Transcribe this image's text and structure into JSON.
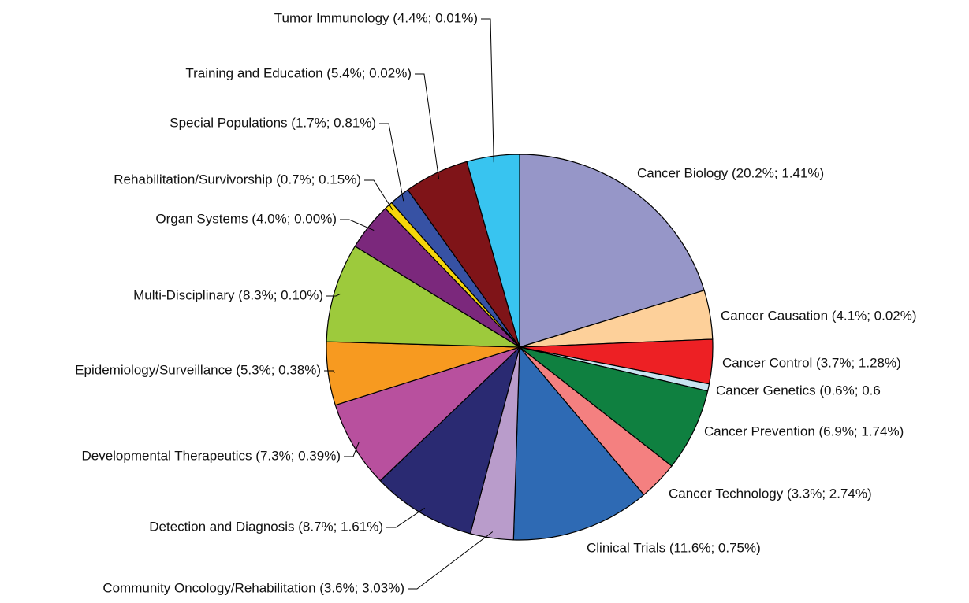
{
  "chart_data": {
    "type": "pie",
    "categories": [
      "Cancer Biology (20.2%; 1.41%)",
      "Cancer Causation (4.1%; 0.02%)",
      "Cancer Control (3.7%; 1.28%)",
      "Cancer Genetics (0.6%; 0.6",
      "Cancer Prevention (6.9%; 1.74%)",
      "Cancer Technology (3.3%; 2.74%)",
      "Clinical Trials (11.6%; 0.75%)",
      "Community Oncology/Rehabilitation (3.6%; 3.03%)",
      "Detection and Diagnosis (8.7%; 1.61%)",
      "Developmental Therapeutics (7.3%; 0.39%)",
      "Epidemiology/Surveillance (5.3%; 0.38%)",
      "Multi-Disciplinary (8.3%; 0.10%)",
      "Organ Systems (4.0%; 0.00%)",
      "Rehabilitation/Survivorship (0.7%; 0.15%)",
      "Special Populations (1.7%; 0.81%)",
      "Training and Education (5.4%; 0.02%)",
      "Tumor Immunology (4.4%; 0.01%)"
    ],
    "values": [
      20.2,
      4.1,
      3.7,
      0.6,
      6.9,
      3.3,
      11.6,
      3.6,
      8.7,
      7.3,
      5.3,
      8.3,
      4.0,
      0.7,
      1.7,
      5.4,
      4.4
    ],
    "colors": [
      "#9696c8",
      "#fdd09a",
      "#ed2024",
      "#c8e4f0",
      "#0f8040",
      "#f48080",
      "#2e6ab4",
      "#b99ccb",
      "#2a2a72",
      "#b8509e",
      "#f79a20",
      "#9dca3c",
      "#7b287c",
      "#f5d60a",
      "#3752a4",
      "#7f1418",
      "#38c4f0"
    ]
  }
}
